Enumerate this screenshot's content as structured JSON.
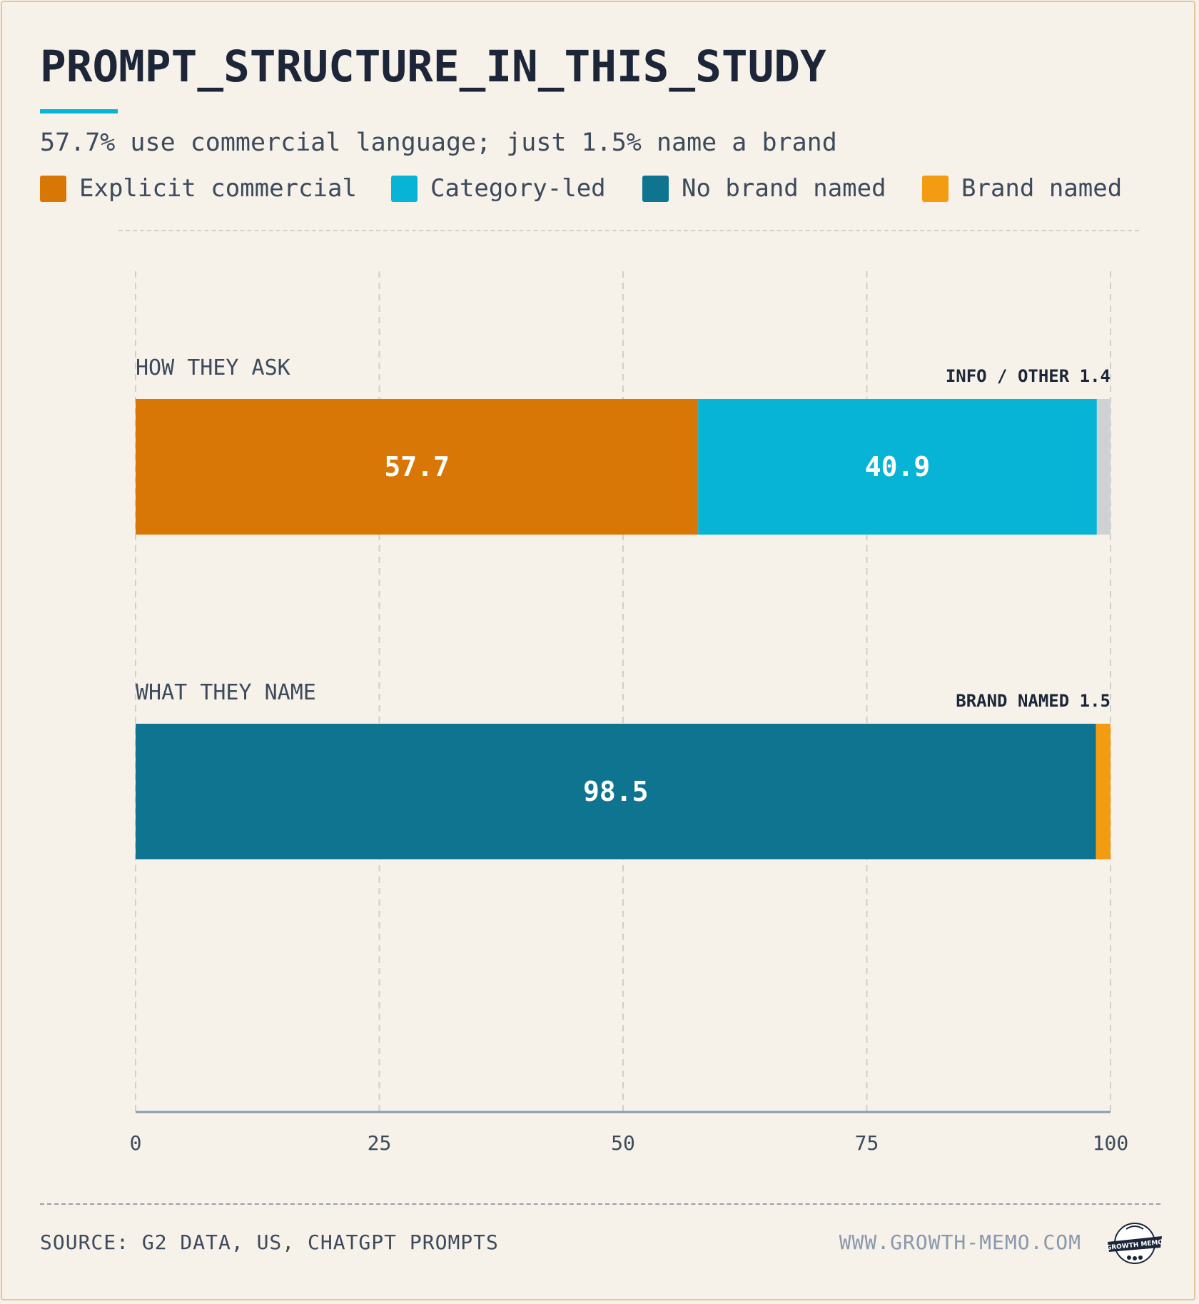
{
  "header": {
    "title": "PROMPT_STRUCTURE_IN_THIS_STUDY",
    "subtitle": "57.7% use commercial language; just 1.5% name a brand"
  },
  "legend": [
    {
      "label": "Explicit commercial",
      "color": "#d97706"
    },
    {
      "label": "Category-led",
      "color": "#07b4d5"
    },
    {
      "label": "No brand named",
      "color": "#0e7490"
    },
    {
      "label": "Brand named",
      "color": "#f39c12"
    }
  ],
  "footer": {
    "source": "SOURCE: G2 DATA, US, CHATGPT PROMPTS",
    "site": "WWW.GROWTH-MEMO.COM",
    "logo_text": "GROWTH MEMO"
  },
  "chart_data": {
    "type": "bar",
    "orientation": "horizontal",
    "stacked": true,
    "xlim": [
      0,
      100
    ],
    "xticks": [
      "0",
      "25",
      "50",
      "75",
      "100"
    ],
    "grid": true,
    "rows": [
      {
        "label": "HOW THEY ASK",
        "annotation": "INFO / OTHER 1.4",
        "segments": [
          {
            "name": "Explicit commercial",
            "value": 57.7,
            "color": "#d97706",
            "label": "57.7"
          },
          {
            "name": "Category-led",
            "value": 40.9,
            "color": "#07b4d5",
            "label": "40.9"
          },
          {
            "name": "Info / other",
            "value": 1.4,
            "color": "#cfd2d4",
            "label": ""
          }
        ]
      },
      {
        "label": "WHAT THEY NAME",
        "annotation": "BRAND NAMED 1.5",
        "segments": [
          {
            "name": "No brand named",
            "value": 98.5,
            "color": "#0e7490",
            "label": "98.5"
          },
          {
            "name": "Brand named",
            "value": 1.5,
            "color": "#f39c12",
            "label": ""
          }
        ]
      }
    ]
  }
}
